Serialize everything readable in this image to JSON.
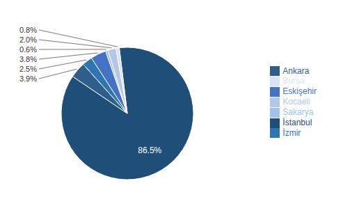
{
  "chart_data": {
    "type": "pie",
    "categories": [
      "İstanbul",
      "Ankara",
      "İzmir",
      "Eskişehir",
      "Sakarya",
      "Kocaeli",
      "Bursa"
    ],
    "values": [
      86.5,
      3.9,
      2.5,
      3.8,
      0.6,
      2.0,
      0.8
    ],
    "value_labels": [
      "86.5%",
      "3.9%",
      "2.5%",
      "3.8%",
      "0.6%",
      "2.0%",
      "0.8%"
    ],
    "colors": [
      "#1F4E79",
      "#2E5F8C",
      "#2E75B6",
      "#4472C4",
      "#9DC3E6",
      "#B4C7E7",
      "#DAE3F3"
    ],
    "data_labels": true,
    "legend": "right"
  }
}
